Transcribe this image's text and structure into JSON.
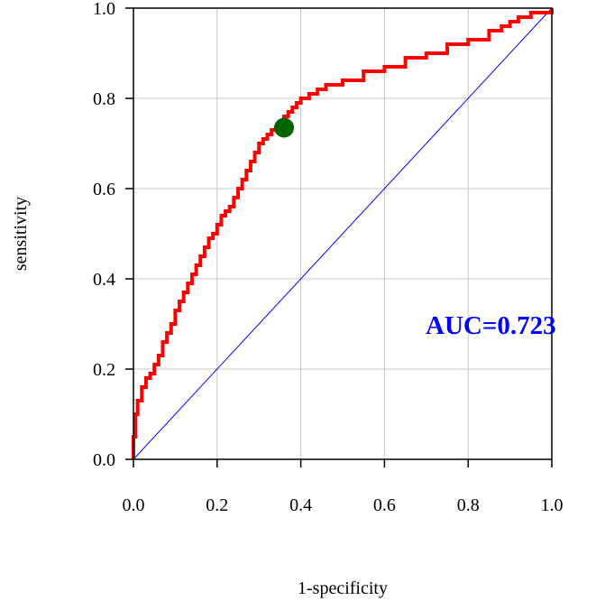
{
  "chart_data": {
    "type": "line",
    "title": "",
    "xlabel": "1-specificity",
    "ylabel": "sensitivity",
    "xlim": [
      0,
      1
    ],
    "ylim": [
      0,
      1
    ],
    "grid": true,
    "x_ticks": [
      "0.0",
      "0.2",
      "0.4",
      "0.6",
      "0.8",
      "1.0"
    ],
    "y_ticks": [
      "0.0",
      "0.2",
      "0.4",
      "0.6",
      "0.8",
      "1.0"
    ],
    "series": [
      {
        "color": "#ff0000",
        "x": [
          0,
          0.0,
          0.005,
          0.01,
          0.02,
          0.03,
          0.04,
          0.05,
          0.06,
          0.07,
          0.08,
          0.09,
          0.1,
          0.11,
          0.12,
          0.13,
          0.14,
          0.15,
          0.16,
          0.17,
          0.18,
          0.19,
          0.2,
          0.21,
          0.22,
          0.23,
          0.24,
          0.25,
          0.26,
          0.27,
          0.28,
          0.29,
          0.3,
          0.31,
          0.32,
          0.33,
          0.34,
          0.35,
          0.36,
          0.37,
          0.38,
          0.39,
          0.4,
          0.42,
          0.44,
          0.46,
          0.5,
          0.55,
          0.6,
          0.65,
          0.7,
          0.75,
          0.8,
          0.85,
          0.88,
          0.9,
          0.92,
          0.95,
          1.0
        ],
        "y": [
          0,
          0.05,
          0.1,
          0.13,
          0.16,
          0.18,
          0.19,
          0.21,
          0.23,
          0.26,
          0.28,
          0.3,
          0.33,
          0.35,
          0.37,
          0.39,
          0.41,
          0.43,
          0.45,
          0.47,
          0.49,
          0.5,
          0.52,
          0.54,
          0.55,
          0.56,
          0.58,
          0.6,
          0.62,
          0.64,
          0.66,
          0.68,
          0.7,
          0.71,
          0.72,
          0.73,
          0.735,
          0.745,
          0.76,
          0.77,
          0.78,
          0.79,
          0.8,
          0.81,
          0.82,
          0.83,
          0.84,
          0.86,
          0.87,
          0.89,
          0.9,
          0.92,
          0.93,
          0.95,
          0.96,
          0.97,
          0.98,
          0.99,
          1.0
        ]
      },
      {
        "color": "#0000ff",
        "x": [
          0,
          1
        ],
        "y": [
          0,
          1
        ]
      }
    ],
    "points": [
      {
        "x": 0.36,
        "y": 0.735,
        "color": "#006400"
      }
    ],
    "annotations": [
      {
        "text": "AUC=0.723",
        "color": "#0000ff"
      }
    ]
  }
}
